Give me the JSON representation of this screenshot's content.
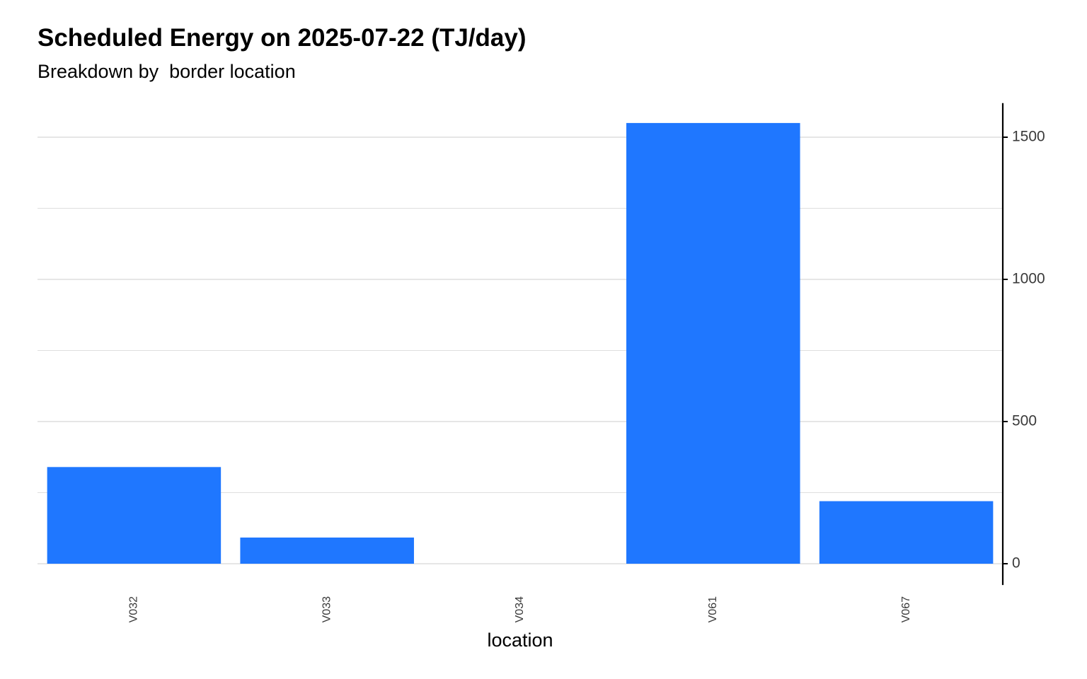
{
  "chart_data": {
    "type": "bar",
    "title": "Scheduled Energy on 2025-07-22 (TJ/day)",
    "subtitle": "Breakdown by  border location",
    "xlabel": "location",
    "ylabel": "",
    "categories": [
      "V032",
      "V033",
      "V034",
      "V061",
      "V067"
    ],
    "values": [
      340,
      92,
      0,
      1550,
      220
    ],
    "ylim": [
      -75,
      1620
    ],
    "y_ticks": [
      0,
      500,
      1000,
      1500
    ],
    "y_ticks_text": [
      "0",
      "500",
      "1000",
      "1500"
    ],
    "y_axis_position": "right",
    "grid": true,
    "bar_color": "#1f77ff",
    "grid_color": "#dedede",
    "axis_color": "#000000"
  }
}
